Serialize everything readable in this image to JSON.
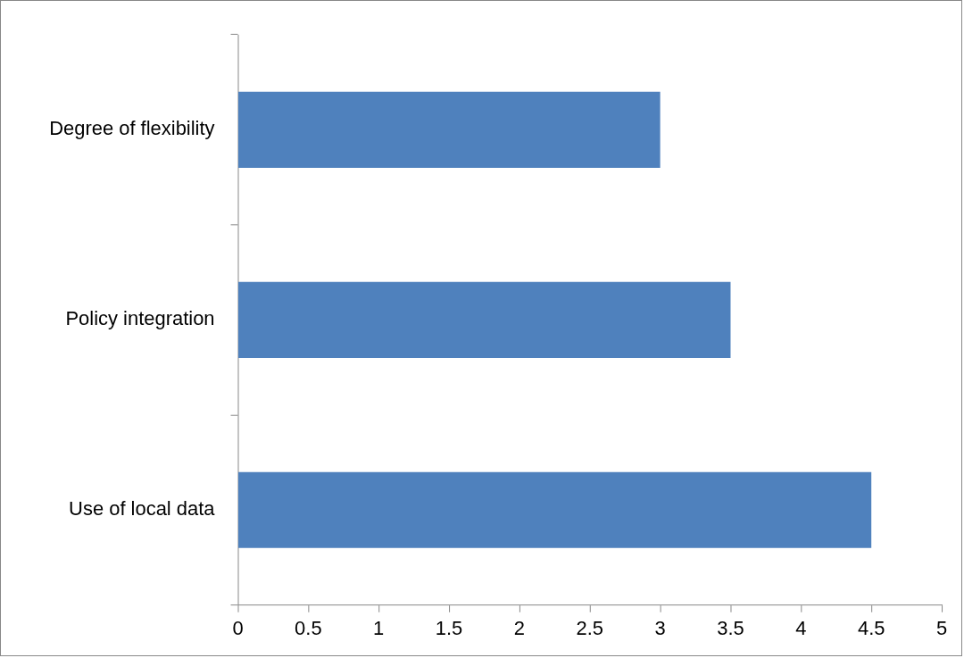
{
  "chart_data": {
    "type": "bar",
    "orientation": "horizontal",
    "categories": [
      "Degree of flexibility",
      "Policy integration",
      "Use of local data"
    ],
    "values": [
      3,
      3.5,
      4.5
    ],
    "color": "#4f81bd",
    "xlim": [
      0,
      5
    ],
    "xticks": [
      0,
      0.5,
      1,
      1.5,
      2,
      2.5,
      3,
      3.5,
      4,
      4.5,
      5
    ],
    "grid": false,
    "legend": false
  }
}
